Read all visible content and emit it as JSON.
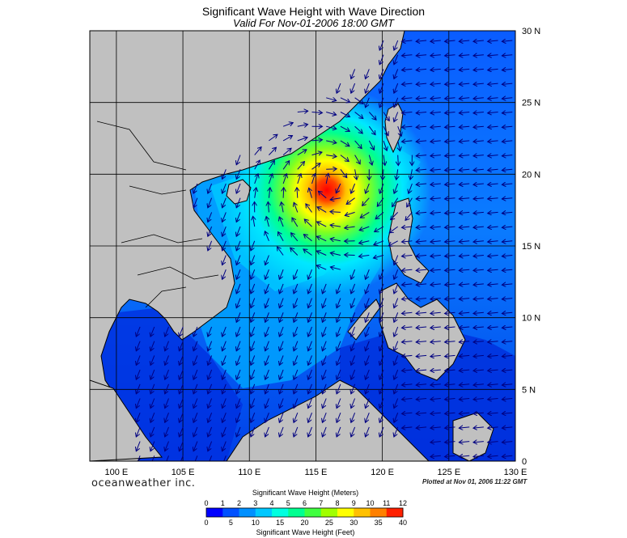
{
  "header": {
    "title": "Significant Wave Height with Wave Direction",
    "subtitle": "Valid For Nov-01-2006 18:00 GMT"
  },
  "map": {
    "lon_min": 98,
    "lon_max": 130,
    "lat_min": 0,
    "lat_max": 30,
    "lon_labels": [
      "100 E",
      "105 E",
      "110 E",
      "115 E",
      "120 E",
      "125 E",
      "130 E"
    ],
    "lat_labels": [
      "30 N",
      "25 N",
      "20 N",
      "15 N",
      "10 N",
      "5 N",
      "0"
    ],
    "storm_center": {
      "lon": 116.2,
      "lat": 19.4
    },
    "land_color": "#c0c0c0",
    "grid_color": "#000000"
  },
  "footer": {
    "brand": "oceanweather inc.",
    "plotted": "Plotted at Nov 01, 2006 11:22 GMT"
  },
  "colorbar": {
    "meters_title": "Significant Wave Height (Meters)",
    "feet_title": "Significant Wave Height (Feet)",
    "meters_ticks": [
      "0",
      "1",
      "2",
      "3",
      "4",
      "5",
      "6",
      "7",
      "8",
      "9",
      "10",
      "11",
      "12"
    ],
    "feet_ticks": [
      "0",
      "5",
      "10",
      "15",
      "20",
      "25",
      "30",
      "35",
      "40"
    ],
    "colors": [
      "#0000ff",
      "#0050ff",
      "#0090ff",
      "#00c8ff",
      "#00ffe0",
      "#00ff90",
      "#40ff40",
      "#a0ff00",
      "#ffff00",
      "#ffc000",
      "#ff8000",
      "#ff2000"
    ]
  }
}
